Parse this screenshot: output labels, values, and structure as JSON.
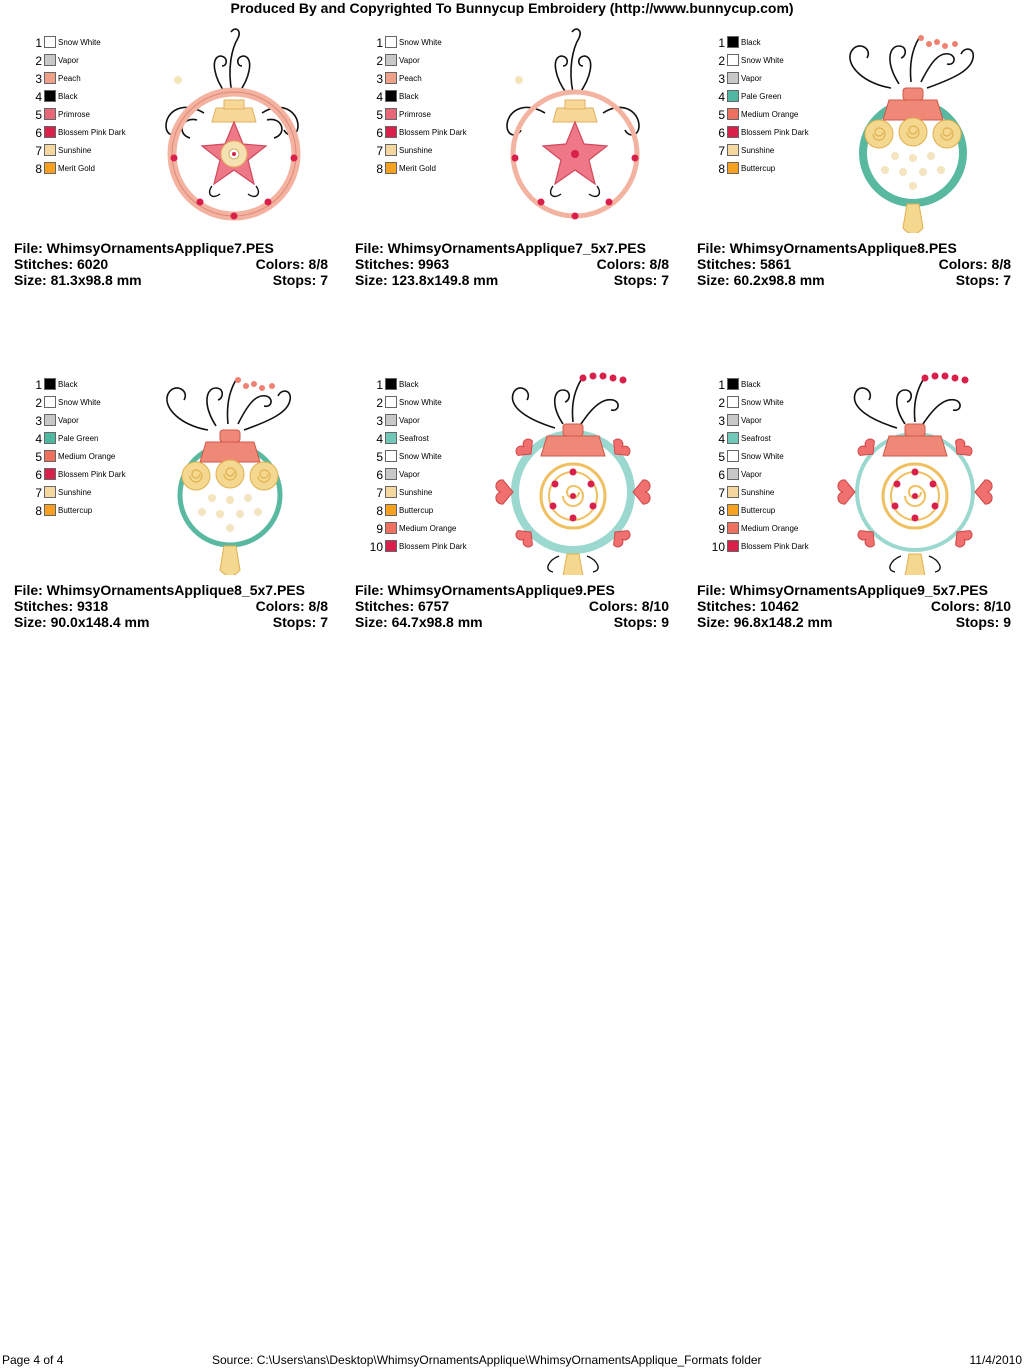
{
  "header": "Produced By and Copyrighted To Bunnycup Embroidery (http://www.bunnycup.com)",
  "designs": [
    {
      "file": "File: WhimsyOrnamentsApplique7.PES",
      "stitches": "Stitches: 6020",
      "colors": "Colors: 8/8",
      "size": "Size: 81.3x98.8 mm",
      "stops": "Stops: 7",
      "legend": [
        {
          "num": "1",
          "name": "Snow White",
          "color": "#ffffff"
        },
        {
          "num": "2",
          "name": "Vapor",
          "color": "#c8c8c8"
        },
        {
          "num": "3",
          "name": "Peach",
          "color": "#f0a088"
        },
        {
          "num": "4",
          "name": "Black",
          "color": "#000000"
        },
        {
          "num": "5",
          "name": "Primrose",
          "color": "#e86878"
        },
        {
          "num": "6",
          "name": "Blossem Pink Dark",
          "color": "#d8204a"
        },
        {
          "num": "7",
          "name": "Sunshine",
          "color": "#f4d8a0"
        },
        {
          "num": "8",
          "name": "Merit Gold",
          "color": "#f8a020"
        }
      ]
    },
    {
      "file": "File: WhimsyOrnamentsApplique7_5x7.PES",
      "stitches": "Stitches: 9963",
      "colors": "Colors: 8/8",
      "size": "Size: 123.8x149.8 mm",
      "stops": "Stops: 7",
      "legend": [
        {
          "num": "1",
          "name": "Snow White",
          "color": "#ffffff"
        },
        {
          "num": "2",
          "name": "Vapor",
          "color": "#c8c8c8"
        },
        {
          "num": "3",
          "name": "Peach",
          "color": "#f0a088"
        },
        {
          "num": "4",
          "name": "Black",
          "color": "#000000"
        },
        {
          "num": "5",
          "name": "Primrose",
          "color": "#e86878"
        },
        {
          "num": "6",
          "name": "Blossem Pink Dark",
          "color": "#d8204a"
        },
        {
          "num": "7",
          "name": "Sunshine",
          "color": "#f4d8a0"
        },
        {
          "num": "8",
          "name": "Merit Gold",
          "color": "#f8a020"
        }
      ]
    },
    {
      "file": "File: WhimsyOrnamentsApplique8.PES",
      "stitches": "Stitches: 5861",
      "colors": "Colors: 8/8",
      "size": "Size: 60.2x98.8 mm",
      "stops": "Stops: 7",
      "legend": [
        {
          "num": "1",
          "name": "Black",
          "color": "#000000"
        },
        {
          "num": "2",
          "name": "Snow White",
          "color": "#ffffff"
        },
        {
          "num": "3",
          "name": "Vapor",
          "color": "#c8c8c8"
        },
        {
          "num": "4",
          "name": "Pale Green",
          "color": "#50b8a0"
        },
        {
          "num": "5",
          "name": "Medium Orange",
          "color": "#f07060"
        },
        {
          "num": "6",
          "name": "Blossem Pink Dark",
          "color": "#d8204a"
        },
        {
          "num": "7",
          "name": "Sunshine",
          "color": "#f4d8a0"
        },
        {
          "num": "8",
          "name": "Buttercup",
          "color": "#f8a020"
        }
      ]
    },
    {
      "file": "File: WhimsyOrnamentsApplique8_5x7.PES",
      "stitches": "Stitches: 9318",
      "colors": "Colors: 8/8",
      "size": "Size: 90.0x148.4 mm",
      "stops": "Stops: 7",
      "legend": [
        {
          "num": "1",
          "name": "Black",
          "color": "#000000"
        },
        {
          "num": "2",
          "name": "Snow White",
          "color": "#ffffff"
        },
        {
          "num": "3",
          "name": "Vapor",
          "color": "#c8c8c8"
        },
        {
          "num": "4",
          "name": "Pale Green",
          "color": "#50b8a0"
        },
        {
          "num": "5",
          "name": "Medium Orange",
          "color": "#f07060"
        },
        {
          "num": "6",
          "name": "Blossem Pink Dark",
          "color": "#d8204a"
        },
        {
          "num": "7",
          "name": "Sunshine",
          "color": "#f4d8a0"
        },
        {
          "num": "8",
          "name": "Buttercup",
          "color": "#f8a020"
        }
      ]
    },
    {
      "file": "File: WhimsyOrnamentsApplique9.PES",
      "stitches": "Stitches: 6757",
      "colors": "Colors: 8/10",
      "size": "Size: 64.7x98.8 mm",
      "stops": "Stops: 9",
      "legend": [
        {
          "num": "1",
          "name": "Black",
          "color": "#000000"
        },
        {
          "num": "2",
          "name": "Snow White",
          "color": "#ffffff"
        },
        {
          "num": "3",
          "name": "Vapor",
          "color": "#c8c8c8"
        },
        {
          "num": "4",
          "name": "Seafrost",
          "color": "#70c8b8"
        },
        {
          "num": "5",
          "name": "Snow White",
          "color": "#ffffff"
        },
        {
          "num": "6",
          "name": "Vapor",
          "color": "#c8c8c8"
        },
        {
          "num": "7",
          "name": "Sunshine",
          "color": "#f4d8a0"
        },
        {
          "num": "8",
          "name": "Buttercup",
          "color": "#f8a020"
        },
        {
          "num": "9",
          "name": "Medium Orange",
          "color": "#f07060"
        },
        {
          "num": "10",
          "name": "Blossem Pink Dark",
          "color": "#d8204a"
        }
      ]
    },
    {
      "file": "File: WhimsyOrnamentsApplique9_5x7.PES",
      "stitches": "Stitches: 10462",
      "colors": "Colors: 8/10",
      "size": "Size: 96.8x148.2 mm",
      "stops": "Stops: 9",
      "legend": [
        {
          "num": "1",
          "name": "Black",
          "color": "#000000"
        },
        {
          "num": "2",
          "name": "Snow White",
          "color": "#ffffff"
        },
        {
          "num": "3",
          "name": "Vapor",
          "color": "#c8c8c8"
        },
        {
          "num": "4",
          "name": "Seafrost",
          "color": "#70c8b8"
        },
        {
          "num": "5",
          "name": "Snow White",
          "color": "#ffffff"
        },
        {
          "num": "6",
          "name": "Vapor",
          "color": "#c8c8c8"
        },
        {
          "num": "7",
          "name": "Sunshine",
          "color": "#f4d8a0"
        },
        {
          "num": "8",
          "name": "Buttercup",
          "color": "#f8a020"
        },
        {
          "num": "9",
          "name": "Medium Orange",
          "color": "#f07060"
        },
        {
          "num": "10",
          "name": "Blossem Pink Dark",
          "color": "#d8204a"
        }
      ]
    }
  ],
  "footer": {
    "page": "Page 4 of 4",
    "source": "Source: C:\\Users\\ans\\Desktop\\WhimsyOrnamentsApplique\\WhimsyOrnamentsApplique_Formats folder",
    "date": "11/4/2010"
  }
}
